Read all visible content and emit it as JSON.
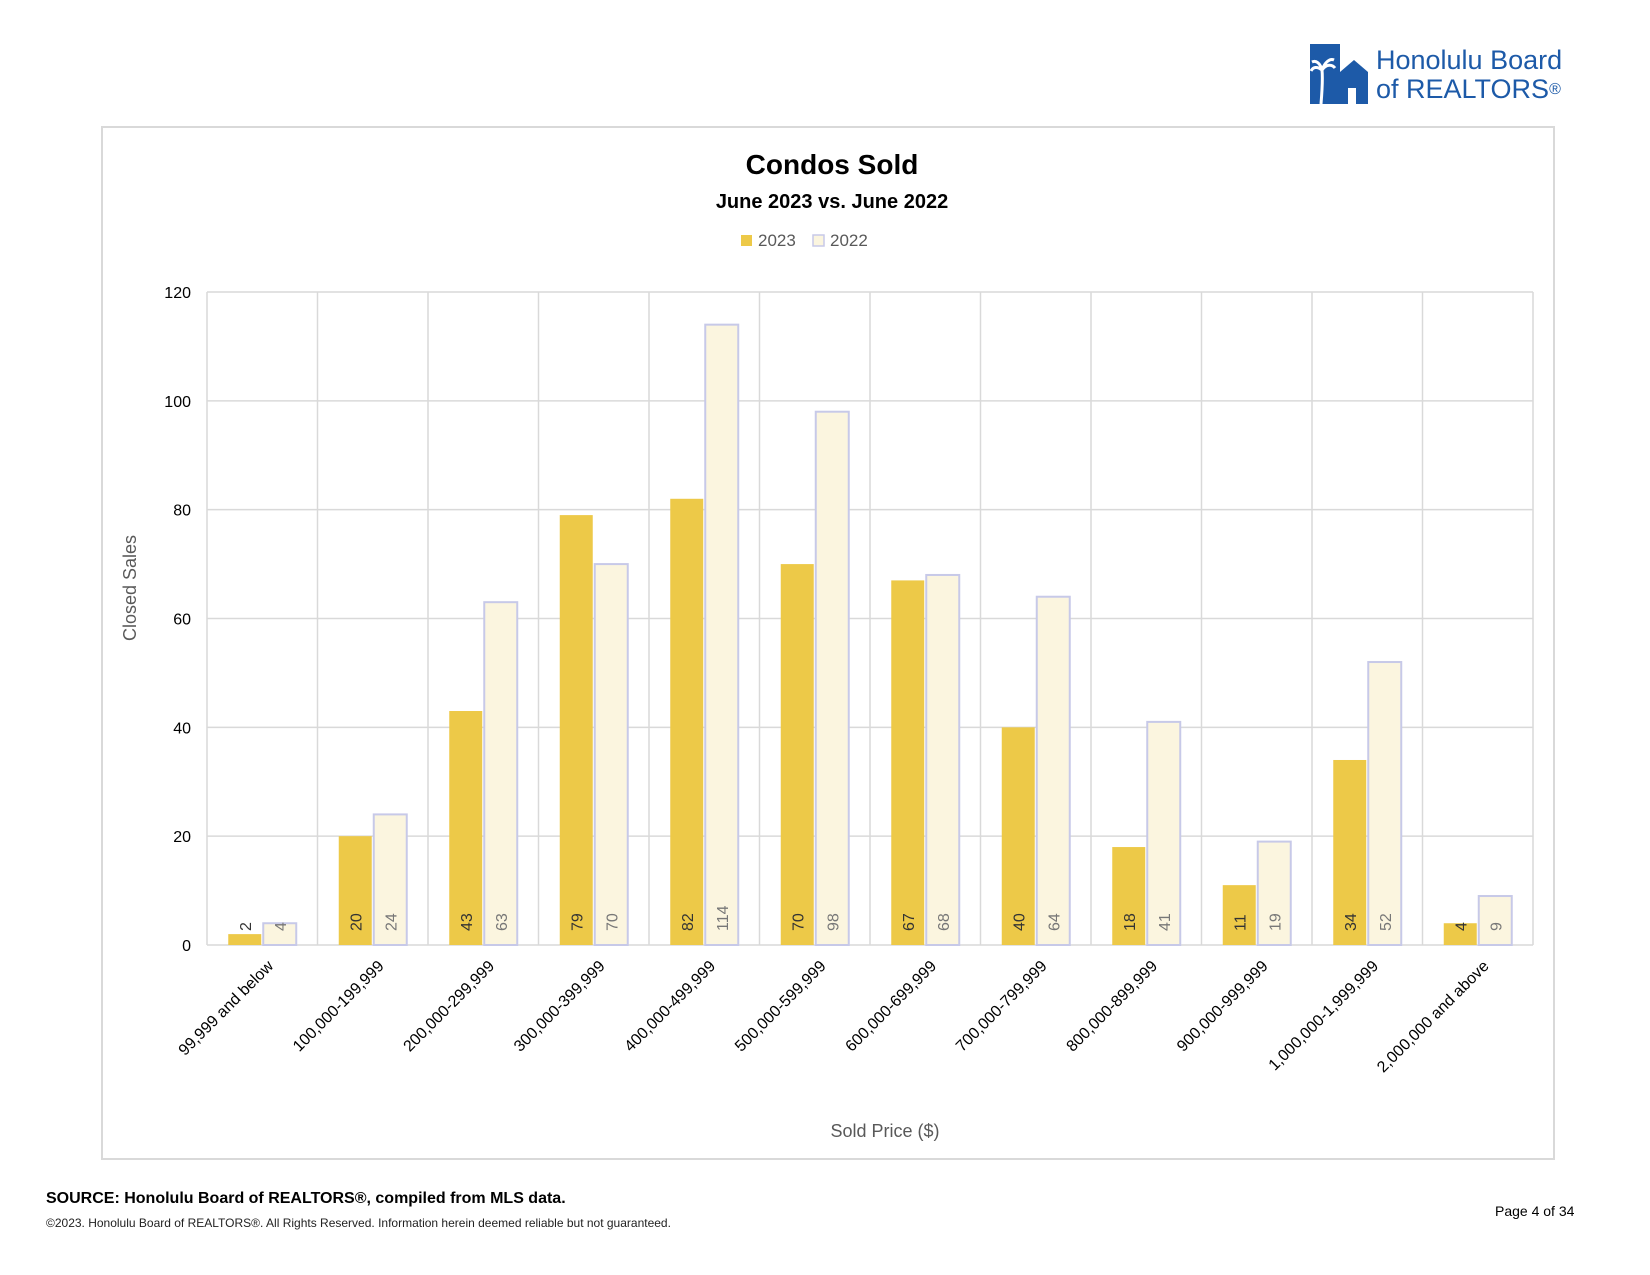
{
  "logo": {
    "line1": "Honolulu Board",
    "line2": "of REALTORS",
    "reg": "®"
  },
  "chart_data": {
    "type": "bar",
    "title": "Condos Sold",
    "subtitle": "June 2023 vs. June 2022",
    "xlabel": "Sold Price ($)",
    "ylabel": "Closed Sales",
    "ylim": [
      0,
      120
    ],
    "yticks": [
      0,
      20,
      40,
      60,
      80,
      100,
      120
    ],
    "grid": true,
    "legend_position": "top-center",
    "categories": [
      "99,999 and below",
      "100,000-199,999",
      "200,000-299,999",
      "300,000-399,999",
      "400,000-499,999",
      "500,000-599,999",
      "600,000-699,999",
      "700,000-799,999",
      "800,000-899,999",
      "900,000-999,999",
      "1,000,000-1,999,999",
      "2,000,000 and above"
    ],
    "series": [
      {
        "name": "2023",
        "values": [
          2,
          20,
          43,
          79,
          82,
          70,
          67,
          40,
          18,
          11,
          34,
          4
        ],
        "color": "#edc948",
        "border": "#edc948",
        "label_color": "#333333"
      },
      {
        "name": "2022",
        "values": [
          4,
          24,
          63,
          70,
          114,
          98,
          68,
          64,
          41,
          19,
          52,
          9
        ],
        "color": "#fbf5df",
        "border": "#c7c9e8",
        "label_color": "#777777"
      }
    ]
  },
  "footer": {
    "source": "SOURCE: Honolulu Board of REALTORS®, compiled from MLS data.",
    "copyright": "©2023. Honolulu Board of REALTORS®. All Rights Reserved. Information herein deemed reliable but not guaranteed.",
    "page": "Page 4 of 34"
  }
}
